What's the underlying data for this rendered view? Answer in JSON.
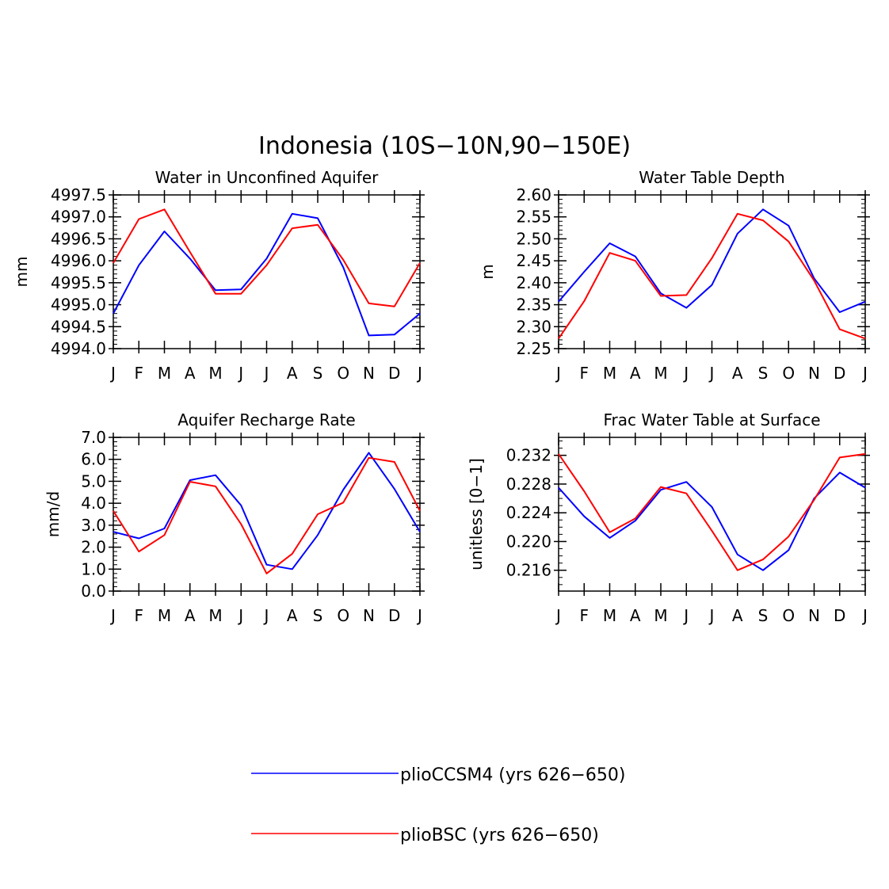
{
  "figure": {
    "title": "Indonesia (10S−10N,90−150E)"
  },
  "colors": {
    "blue": "#0000ff",
    "red": "#ff0000",
    "axis": "#000000"
  },
  "legend": [
    {
      "label": "plioCCSM4 (yrs 626−650)",
      "color": "#0000ff"
    },
    {
      "label": "plioBSC (yrs 626−650)",
      "color": "#ff0000"
    }
  ],
  "chart_data": [
    {
      "type": "line",
      "title": "Water in Unconfined Aquifer",
      "xlabel": "",
      "ylabel": "mm",
      "categories": [
        "J",
        "F",
        "M",
        "A",
        "M",
        "J",
        "J",
        "A",
        "S",
        "O",
        "N",
        "D",
        "J"
      ],
      "ylim": [
        4994.0,
        4997.5
      ],
      "yticks": [
        4994.0,
        4994.5,
        4995.0,
        4995.5,
        4996.0,
        4996.5,
        4997.0,
        4997.5
      ],
      "ytick_labels": [
        "4994.0",
        "4994.5",
        "4995.0",
        "4995.5",
        "4996.0",
        "4996.5",
        "4997.0",
        "4997.5"
      ],
      "yminor": 0.1,
      "series": [
        {
          "name": "plioCCSM4 (yrs 626−650)",
          "color": "#0000ff",
          "values": [
            4994.8,
            4995.9,
            4996.67,
            4996.05,
            4995.33,
            4995.35,
            4996.05,
            4997.07,
            4996.97,
            4995.85,
            4994.3,
            4994.32,
            4994.8
          ]
        },
        {
          "name": "plioBSC (yrs 626−650)",
          "color": "#ff0000",
          "values": [
            4995.95,
            4996.95,
            4997.17,
            4996.2,
            4995.25,
            4995.25,
            4995.9,
            4996.74,
            4996.82,
            4996.02,
            4995.03,
            4994.96,
            4995.95
          ]
        }
      ]
    },
    {
      "type": "line",
      "title": "Water Table Depth",
      "xlabel": "",
      "ylabel": "m",
      "categories": [
        "J",
        "F",
        "M",
        "A",
        "M",
        "J",
        "J",
        "A",
        "S",
        "O",
        "N",
        "D",
        "J"
      ],
      "ylim": [
        2.25,
        2.6
      ],
      "yticks": [
        2.25,
        2.3,
        2.35,
        2.4,
        2.45,
        2.5,
        2.55,
        2.6
      ],
      "ytick_labels": [
        "2.25",
        "2.30",
        "2.35",
        "2.40",
        "2.45",
        "2.50",
        "2.55",
        "2.60"
      ],
      "yminor": 0.01,
      "series": [
        {
          "name": "plioCCSM4 (yrs 626−650)",
          "color": "#0000ff",
          "values": [
            2.357,
            2.425,
            2.49,
            2.46,
            2.376,
            2.343,
            2.395,
            2.512,
            2.567,
            2.53,
            2.41,
            2.333,
            2.357
          ]
        },
        {
          "name": "plioBSC (yrs 626−650)",
          "color": "#ff0000",
          "values": [
            2.273,
            2.358,
            2.468,
            2.45,
            2.37,
            2.372,
            2.456,
            2.557,
            2.542,
            2.494,
            2.405,
            2.294,
            2.273
          ]
        }
      ]
    },
    {
      "type": "line",
      "title": "Aquifer Recharge Rate",
      "xlabel": "",
      "ylabel": "mm/d",
      "categories": [
        "J",
        "F",
        "M",
        "A",
        "M",
        "J",
        "J",
        "A",
        "S",
        "O",
        "N",
        "D",
        "J"
      ],
      "ylim": [
        0.0,
        7.0
      ],
      "yticks": [
        0.0,
        1.0,
        2.0,
        3.0,
        4.0,
        5.0,
        6.0,
        7.0
      ],
      "ytick_labels": [
        "0.0",
        "1.0",
        "2.0",
        "3.0",
        "4.0",
        "5.0",
        "6.0",
        "7.0"
      ],
      "yminor": 0.2,
      "series": [
        {
          "name": "plioCCSM4 (yrs 626−650)",
          "color": "#0000ff",
          "values": [
            2.7,
            2.4,
            2.85,
            5.05,
            5.28,
            3.9,
            1.2,
            1.0,
            2.55,
            4.62,
            6.3,
            4.65,
            2.7
          ]
        },
        {
          "name": "plioBSC (yrs 626−650)",
          "color": "#ff0000",
          "values": [
            3.65,
            1.8,
            2.55,
            4.98,
            4.77,
            3.05,
            0.8,
            1.7,
            3.5,
            4.03,
            6.07,
            5.88,
            3.65
          ]
        }
      ]
    },
    {
      "type": "line",
      "title": "Frac Water Table at Surface",
      "xlabel": "",
      "ylabel": "unitless [0−1]",
      "categories": [
        "J",
        "F",
        "M",
        "A",
        "M",
        "J",
        "J",
        "A",
        "S",
        "O",
        "N",
        "D",
        "J"
      ],
      "ylim": [
        0.2131,
        0.2345
      ],
      "yticks": [
        0.216,
        0.22,
        0.224,
        0.228,
        0.232
      ],
      "ytick_labels": [
        "0.216",
        "0.220",
        "0.224",
        "0.228",
        "0.232"
      ],
      "yminor": 0.001,
      "series": [
        {
          "name": "plioCCSM4 (yrs 626−650)",
          "color": "#0000ff",
          "values": [
            0.2275,
            0.2235,
            0.2205,
            0.2229,
            0.2272,
            0.2283,
            0.2248,
            0.2182,
            0.216,
            0.2188,
            0.226,
            0.2296,
            0.2275
          ]
        },
        {
          "name": "plioBSC (yrs 626−650)",
          "color": "#ff0000",
          "values": [
            0.2322,
            0.227,
            0.2213,
            0.2232,
            0.2276,
            0.2267,
            0.2215,
            0.216,
            0.2175,
            0.2207,
            0.2258,
            0.2317,
            0.2322
          ]
        }
      ]
    }
  ]
}
